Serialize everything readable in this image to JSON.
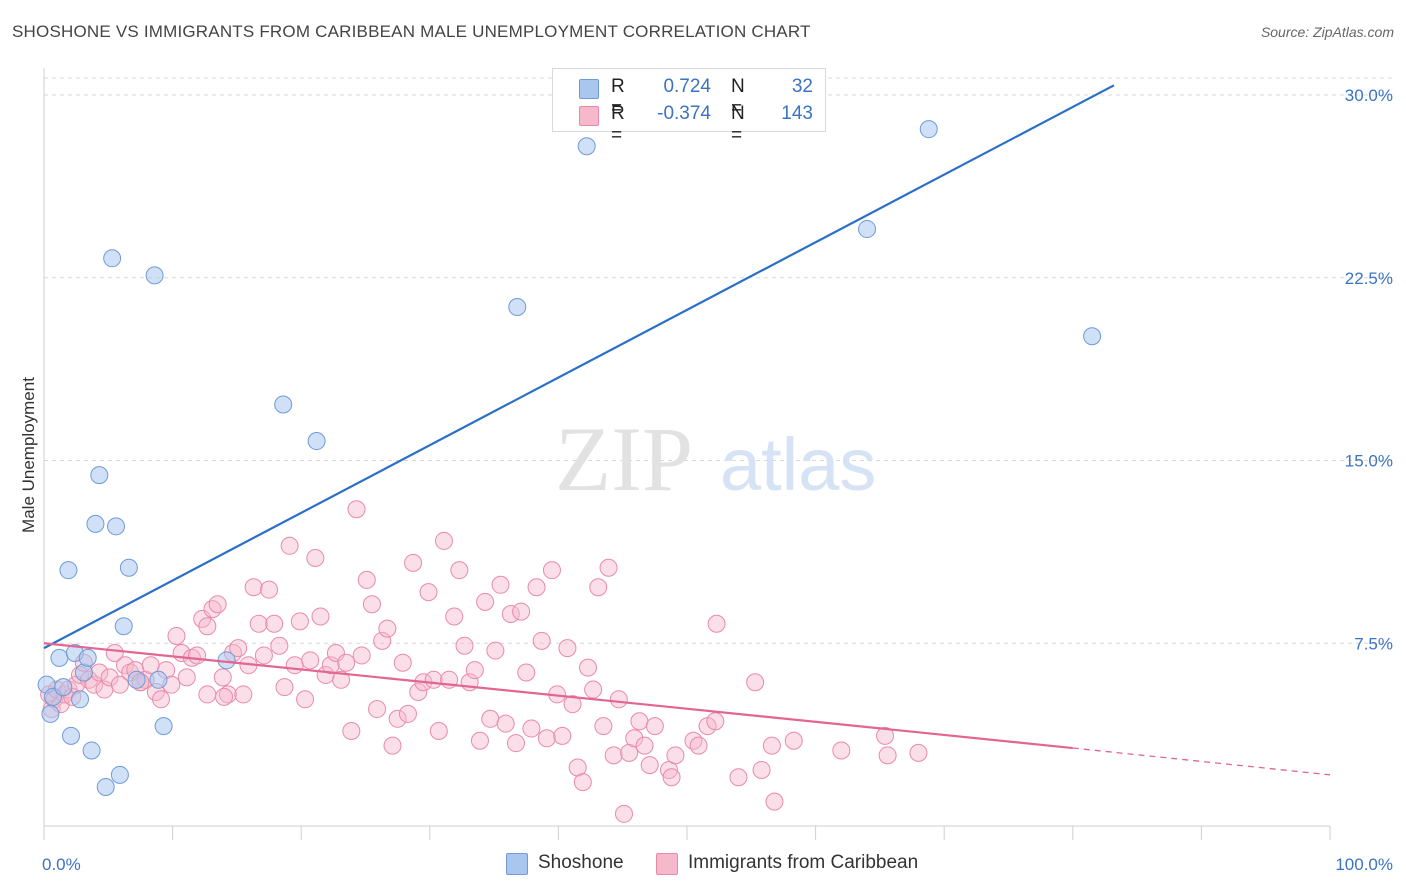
{
  "header": {
    "title": "SHOSHONE VS IMMIGRANTS FROM CARIBBEAN MALE UNEMPLOYMENT CORRELATION CHART",
    "source": "Source: ZipAtlas.com"
  },
  "legend": {
    "rows": [
      {
        "r_label": "R =",
        "r_value": "0.724",
        "n_label": "N =",
        "n_value": "32"
      },
      {
        "r_label": "R =",
        "r_value": "-0.374",
        "n_label": "N =",
        "n_value": "143"
      }
    ]
  },
  "bottom_legend": {
    "items": [
      {
        "label": "Shoshone"
      },
      {
        "label": "Immigrants from Caribbean"
      }
    ]
  },
  "watermark": {
    "zip": "ZIP",
    "atlas": "atlas"
  },
  "colors": {
    "blue_fill": "#a9c6ee",
    "blue_stroke": "#6f9bd9",
    "blue_line": "#2b6fc8",
    "pink_fill": "#f6b8cb",
    "pink_stroke": "#ea8aa8",
    "pink_line": "#e26592",
    "grid": "#d8d8d8",
    "axis_text": "#3b73c4"
  },
  "chart_data": {
    "type": "scatter",
    "title": "SHOSHONE VS IMMIGRANTS FROM CARIBBEAN MALE UNEMPLOYMENT CORRELATION CHART",
    "xlabel": "",
    "ylabel": "Male Unemployment",
    "xlim": [
      0,
      100
    ],
    "ylim": [
      0,
      30.7
    ],
    "x_tick_labels": [
      "0.0%",
      "100.0%"
    ],
    "y_ticks": [
      7.5,
      15.0,
      22.5,
      30.0
    ],
    "y_tick_labels": [
      "7.5%",
      "15.0%",
      "22.5%",
      "30.0%"
    ],
    "grid": true,
    "series": [
      {
        "name": "Shoshone",
        "r": 0.724,
        "n": 32,
        "trend": {
          "x0": 0,
          "y0": 7.3,
          "x1": 83.2,
          "y1": 30.4
        },
        "points": [
          [
            0.2,
            5.8
          ],
          [
            0.5,
            4.6
          ],
          [
            0.7,
            5.3
          ],
          [
            1.2,
            6.9
          ],
          [
            1.5,
            5.7
          ],
          [
            1.9,
            10.5
          ],
          [
            2.1,
            3.7
          ],
          [
            2.4,
            7.1
          ],
          [
            2.8,
            5.2
          ],
          [
            3.1,
            6.3
          ],
          [
            3.4,
            6.9
          ],
          [
            3.7,
            3.1
          ],
          [
            4.0,
            12.4
          ],
          [
            4.3,
            14.4
          ],
          [
            4.8,
            1.6
          ],
          [
            5.3,
            23.3
          ],
          [
            5.6,
            12.3
          ],
          [
            5.9,
            2.1
          ],
          [
            6.2,
            8.2
          ],
          [
            6.6,
            10.6
          ],
          [
            7.2,
            6.0
          ],
          [
            8.6,
            22.6
          ],
          [
            8.9,
            6.0
          ],
          [
            9.3,
            4.1
          ],
          [
            14.2,
            6.8
          ],
          [
            18.6,
            17.3
          ],
          [
            21.2,
            15.8
          ],
          [
            36.8,
            21.3
          ],
          [
            42.2,
            27.9
          ],
          [
            64.0,
            24.5
          ],
          [
            81.5,
            20.1
          ],
          [
            68.8,
            28.6
          ]
        ]
      },
      {
        "name": "Immigrants from Caribbean",
        "r": -0.374,
        "n": 143,
        "trend": {
          "x0": 0,
          "y0": 7.5,
          "x1": 80,
          "y1": 3.2,
          "dashed_to_x": 100,
          "dashed_to_y": 2.1
        },
        "points": [
          [
            0.4,
            5.4
          ],
          [
            0.6,
            4.8
          ],
          [
            0.8,
            5.2
          ],
          [
            1.0,
            5.6
          ],
          [
            1.3,
            5.0
          ],
          [
            1.6,
            5.4
          ],
          [
            1.9,
            5.6
          ],
          [
            2.2,
            5.3
          ],
          [
            2.5,
            5.8
          ],
          [
            2.8,
            6.2
          ],
          [
            3.1,
            6.7
          ],
          [
            3.5,
            6.0
          ],
          [
            3.9,
            5.8
          ],
          [
            4.3,
            6.3
          ],
          [
            4.7,
            5.6
          ],
          [
            5.1,
            6.1
          ],
          [
            5.5,
            7.1
          ],
          [
            5.9,
            5.8
          ],
          [
            6.3,
            6.6
          ],
          [
            6.7,
            6.3
          ],
          [
            7.1,
            6.4
          ],
          [
            7.5,
            5.9
          ],
          [
            7.9,
            6.0
          ],
          [
            8.3,
            6.6
          ],
          [
            8.7,
            5.5
          ],
          [
            9.1,
            5.2
          ],
          [
            9.5,
            6.4
          ],
          [
            9.9,
            5.8
          ],
          [
            10.3,
            7.8
          ],
          [
            10.7,
            7.1
          ],
          [
            11.1,
            6.1
          ],
          [
            11.5,
            6.9
          ],
          [
            11.9,
            7.0
          ],
          [
            12.3,
            8.5
          ],
          [
            12.7,
            8.2
          ],
          [
            13.1,
            8.9
          ],
          [
            13.5,
            9.1
          ],
          [
            13.9,
            6.1
          ],
          [
            14.3,
            5.4
          ],
          [
            14.7,
            7.1
          ],
          [
            15.1,
            7.3
          ],
          [
            15.5,
            5.4
          ],
          [
            15.9,
            6.6
          ],
          [
            16.3,
            9.8
          ],
          [
            16.7,
            8.3
          ],
          [
            17.1,
            7.0
          ],
          [
            17.5,
            9.7
          ],
          [
            17.9,
            8.3
          ],
          [
            18.3,
            7.4
          ],
          [
            18.7,
            5.7
          ],
          [
            19.1,
            11.5
          ],
          [
            19.5,
            6.6
          ],
          [
            19.9,
            8.4
          ],
          [
            20.3,
            5.2
          ],
          [
            20.7,
            6.8
          ],
          [
            21.1,
            11.0
          ],
          [
            21.5,
            8.6
          ],
          [
            21.9,
            6.2
          ],
          [
            22.3,
            6.6
          ],
          [
            22.7,
            7.1
          ],
          [
            23.1,
            6.0
          ],
          [
            23.5,
            6.7
          ],
          [
            23.9,
            3.9
          ],
          [
            24.3,
            13.0
          ],
          [
            24.7,
            7.0
          ],
          [
            25.1,
            10.1
          ],
          [
            25.5,
            9.1
          ],
          [
            25.9,
            4.8
          ],
          [
            26.3,
            7.6
          ],
          [
            26.7,
            8.1
          ],
          [
            27.1,
            3.3
          ],
          [
            27.5,
            4.4
          ],
          [
            27.9,
            6.7
          ],
          [
            28.3,
            4.6
          ],
          [
            28.7,
            10.8
          ],
          [
            29.1,
            5.5
          ],
          [
            29.5,
            5.9
          ],
          [
            29.9,
            9.6
          ],
          [
            30.3,
            6.0
          ],
          [
            30.7,
            3.9
          ],
          [
            31.1,
            11.7
          ],
          [
            31.5,
            6.0
          ],
          [
            31.9,
            8.6
          ],
          [
            32.3,
            10.5
          ],
          [
            32.7,
            7.4
          ],
          [
            33.1,
            5.9
          ],
          [
            33.5,
            6.4
          ],
          [
            33.9,
            3.5
          ],
          [
            34.3,
            9.2
          ],
          [
            34.7,
            4.4
          ],
          [
            35.1,
            7.2
          ],
          [
            35.5,
            9.9
          ],
          [
            35.9,
            4.2
          ],
          [
            36.3,
            8.7
          ],
          [
            36.7,
            3.4
          ],
          [
            37.1,
            8.8
          ],
          [
            37.5,
            6.3
          ],
          [
            37.9,
            4.0
          ],
          [
            38.3,
            9.8
          ],
          [
            38.7,
            7.6
          ],
          [
            39.1,
            3.6
          ],
          [
            39.5,
            10.5
          ],
          [
            39.9,
            5.4
          ],
          [
            40.3,
            3.7
          ],
          [
            40.7,
            7.3
          ],
          [
            41.1,
            5.0
          ],
          [
            41.5,
            2.4
          ],
          [
            41.9,
            1.8
          ],
          [
            42.3,
            6.5
          ],
          [
            42.7,
            5.6
          ],
          [
            43.1,
            9.8
          ],
          [
            43.5,
            4.1
          ],
          [
            43.9,
            10.6
          ],
          [
            44.3,
            2.9
          ],
          [
            44.7,
            5.2
          ],
          [
            45.1,
            0.5
          ],
          [
            45.5,
            3.0
          ],
          [
            45.9,
            3.6
          ],
          [
            46.3,
            4.3
          ],
          [
            46.7,
            3.3
          ],
          [
            47.1,
            2.5
          ],
          [
            47.5,
            4.1
          ],
          [
            48.6,
            2.3
          ],
          [
            48.8,
            2.0
          ],
          [
            49.1,
            2.9
          ],
          [
            50.5,
            3.5
          ],
          [
            50.9,
            3.3
          ],
          [
            51.6,
            4.1
          ],
          [
            52.2,
            4.3
          ],
          [
            52.3,
            8.3
          ],
          [
            54.0,
            2.0
          ],
          [
            55.3,
            5.9
          ],
          [
            55.8,
            2.3
          ],
          [
            56.6,
            3.3
          ],
          [
            56.8,
            1.0
          ],
          [
            58.3,
            3.5
          ],
          [
            62.0,
            3.1
          ],
          [
            65.4,
            3.7
          ],
          [
            65.6,
            2.9
          ],
          [
            68.0,
            3.0
          ],
          [
            14.0,
            5.3
          ],
          [
            12.7,
            5.4
          ],
          [
            7.5,
            5.9
          ]
        ]
      }
    ]
  }
}
